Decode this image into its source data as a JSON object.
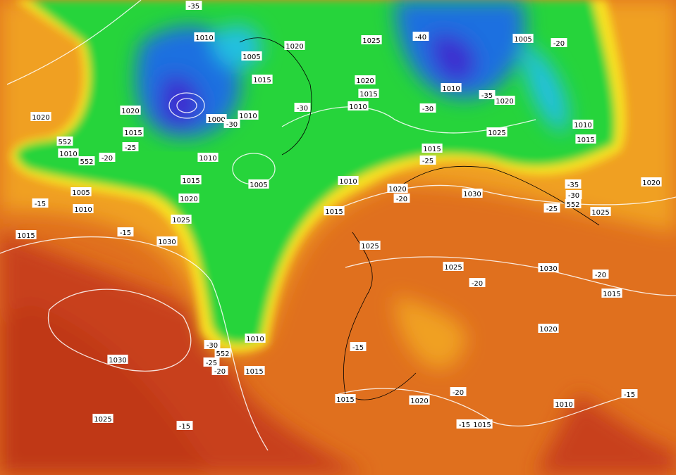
{
  "labels": [
    "-35",
    "1010",
    "1005",
    "1020",
    "1025",
    "-40",
    "1005",
    "-20",
    "1015",
    "1020",
    "1015",
    "1010",
    "-35",
    "1020",
    "1020",
    "1000",
    "1010",
    "-30",
    "1010",
    "-30",
    "1020",
    "1015",
    "-30",
    "1025",
    "1010",
    "1015",
    "552",
    "1010",
    "-20",
    "-25",
    "552",
    "1010",
    "1015",
    "-25",
    "1005",
    "1015",
    "1010",
    "1020",
    "-20",
    "1030",
    "-35",
    "-30",
    "1020",
    "1005",
    "1020",
    "-15",
    "1010",
    "-25",
    "552",
    "1025",
    "1015",
    "1025",
    "-15",
    "1015",
    "1030",
    "1025",
    "1025",
    "1030",
    "-20",
    "-20",
    "1015",
    "1020",
    "1010",
    "-30",
    "552",
    "-25",
    "-20",
    "1015",
    "-15",
    "1030",
    "-20",
    "-15",
    "1015",
    "1020",
    "1010",
    "1025",
    "-15",
    "-15",
    "1015"
  ]
}
